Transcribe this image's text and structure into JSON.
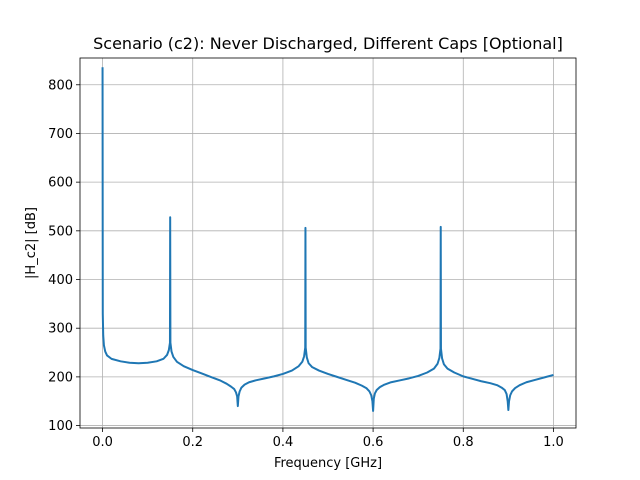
{
  "chart_data": {
    "type": "line",
    "title": "Scenario (c2): Never Discharged, Different Caps [Optional]",
    "xlabel": "Frequency [GHz]",
    "ylabel": "|H_c2| [dB]",
    "xlim": [
      -0.05,
      1.05
    ],
    "ylim": [
      95,
      855
    ],
    "grid": true,
    "xticks": [
      0.0,
      0.2,
      0.4,
      0.6,
      0.8,
      1.0
    ],
    "xtick_labels": [
      "0.0",
      "0.2",
      "0.4",
      "0.6",
      "0.8",
      "1.0"
    ],
    "yticks": [
      100,
      200,
      300,
      400,
      500,
      600,
      700,
      800
    ],
    "ytick_labels": [
      "100",
      "200",
      "300",
      "400",
      "500",
      "600",
      "700",
      "800"
    ],
    "series": [
      {
        "color": "#1f77b4",
        "x": [
          0.0,
          0.0005,
          0.0015,
          0.003,
          0.006,
          0.01,
          0.02,
          0.04,
          0.06,
          0.08,
          0.1,
          0.12,
          0.135,
          0.143,
          0.147,
          0.1495,
          0.15,
          0.1505,
          0.153,
          0.157,
          0.165,
          0.18,
          0.2,
          0.22,
          0.24,
          0.26,
          0.275,
          0.285,
          0.292,
          0.296,
          0.2985,
          0.3,
          0.3015,
          0.304,
          0.308,
          0.315,
          0.325,
          0.34,
          0.36,
          0.38,
          0.4,
          0.42,
          0.435,
          0.443,
          0.447,
          0.4495,
          0.45,
          0.4505,
          0.453,
          0.457,
          0.465,
          0.48,
          0.5,
          0.52,
          0.54,
          0.56,
          0.575,
          0.585,
          0.592,
          0.596,
          0.5985,
          0.6,
          0.6015,
          0.604,
          0.608,
          0.615,
          0.625,
          0.64,
          0.66,
          0.68,
          0.7,
          0.72,
          0.735,
          0.743,
          0.747,
          0.7495,
          0.75,
          0.7505,
          0.753,
          0.757,
          0.765,
          0.78,
          0.8,
          0.82,
          0.84,
          0.86,
          0.875,
          0.885,
          0.892,
          0.896,
          0.8985,
          0.9,
          0.9015,
          0.904,
          0.908,
          0.915,
          0.925,
          0.94,
          0.96,
          0.98,
          1.0
        ],
        "y": [
          836,
          330,
          285,
          265,
          252,
          244,
          237,
          232,
          229,
          228,
          229,
          232,
          237,
          245,
          255,
          270,
          528,
          270,
          252,
          241,
          231,
          222,
          214,
          207,
          200,
          193,
          186,
          180,
          175,
          168,
          160,
          140,
          160,
          170,
          178,
          184,
          189,
          193,
          197,
          201,
          206,
          213,
          222,
          231,
          242,
          260,
          506,
          260,
          240,
          228,
          220,
          213,
          206,
          200,
          194,
          188,
          182,
          177,
          170,
          162,
          150,
          130,
          155,
          166,
          173,
          179,
          184,
          189,
          193,
          197,
          202,
          209,
          217,
          227,
          239,
          258,
          508,
          258,
          238,
          226,
          217,
          209,
          201,
          196,
          191,
          187,
          183,
          178,
          173,
          165,
          150,
          132,
          150,
          162,
          170,
          177,
          183,
          189,
          194,
          199,
          204
        ]
      }
    ]
  }
}
